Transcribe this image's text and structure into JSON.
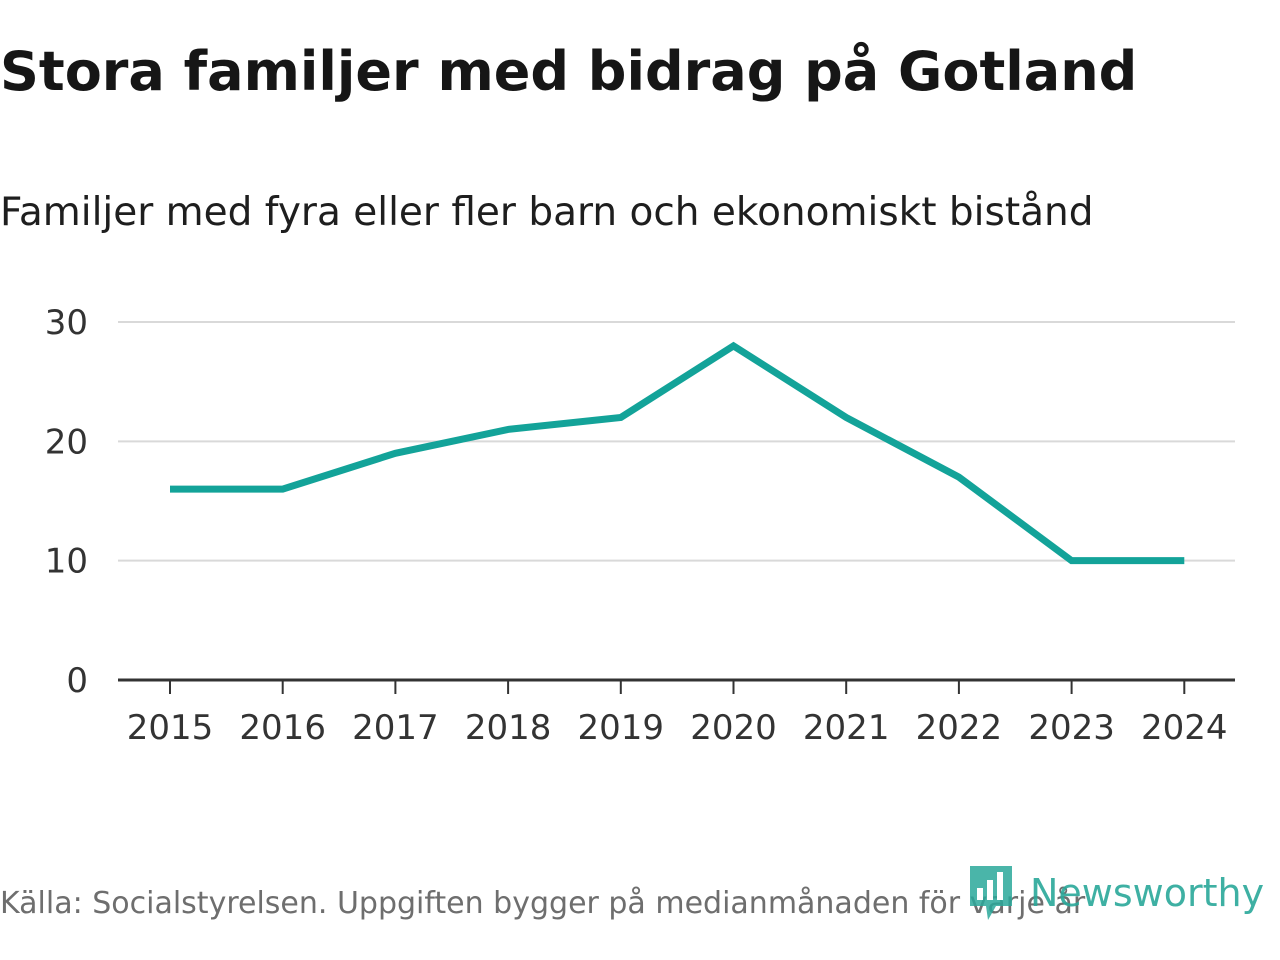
{
  "header": {
    "title": "Stora familjer med bidrag på Gotland",
    "subtitle": "Familjer med fyra eller fler barn och ekonomiskt bistånd"
  },
  "footer": {
    "source": "Källa: Socialstyrelsen. Uppgiften bygger på medianmånaden för varje år",
    "brand": "Newsworthy",
    "brand_icon": "newsworthy-logo-icon"
  },
  "colors": {
    "line": "#13a399",
    "grid": "#d9d9d9",
    "axis": "#333333",
    "brand": "#2aa89a"
  },
  "chart_data": {
    "type": "line",
    "title": "Stora familjer med bidrag på Gotland",
    "subtitle": "Familjer med fyra eller fler barn och ekonomiskt bistånd",
    "xlabel": "",
    "ylabel": "",
    "categories": [
      "2015",
      "2016",
      "2017",
      "2018",
      "2019",
      "2020",
      "2021",
      "2022",
      "2023",
      "2024"
    ],
    "series": [
      {
        "name": "Familjer med fyra eller fler barn och ekonomiskt bistånd",
        "values": [
          16,
          16,
          19,
          21,
          22,
          28,
          22,
          17,
          10,
          10
        ]
      }
    ],
    "ylim": [
      0,
      30
    ],
    "yticks": [
      "0",
      "10",
      "20",
      "30"
    ],
    "grid": true,
    "legend": "none"
  }
}
